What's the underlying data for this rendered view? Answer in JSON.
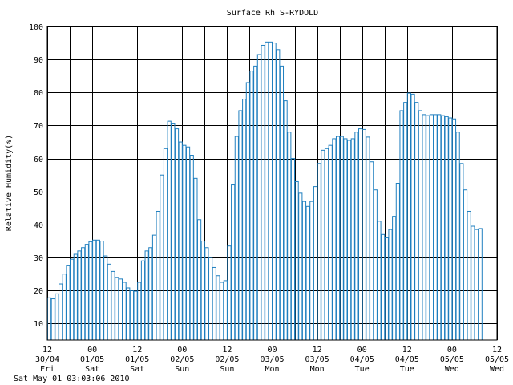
{
  "chart_data": {
    "type": "bar",
    "title": "Surface Rh S-RYDOLD",
    "ylabel": "Relative Humidity(%)",
    "xlabel": "",
    "ylim": [
      5,
      100
    ],
    "yticks": [
      10,
      20,
      30,
      40,
      50,
      60,
      70,
      80,
      90,
      100
    ],
    "grid": true,
    "series_color": "#1f7fbf",
    "timestamp": "Sat May 01 03:03:06 2010",
    "x_ticks": [
      {
        "hour": "12",
        "date": "30/04",
        "day": "Fri"
      },
      {
        "hour": "00",
        "date": "01/05",
        "day": "Sat"
      },
      {
        "hour": "12",
        "date": "01/05",
        "day": "Sat"
      },
      {
        "hour": "00",
        "date": "02/05",
        "day": "Sun"
      },
      {
        "hour": "12",
        "date": "02/05",
        "day": "Sun"
      },
      {
        "hour": "00",
        "date": "03/05",
        "day": "Mon"
      },
      {
        "hour": "12",
        "date": "03/05",
        "day": "Mon"
      },
      {
        "hour": "00",
        "date": "04/05",
        "day": "Tue"
      },
      {
        "hour": "12",
        "date": "04/05",
        "day": "Tue"
      },
      {
        "hour": "00",
        "date": "05/05",
        "day": "Wed"
      },
      {
        "hour": "12",
        "date": "05/05",
        "day": "Wed"
      }
    ],
    "bar_hours": 1,
    "values": [
      17.8,
      17.5,
      19.0,
      22.0,
      25.0,
      27.5,
      29.5,
      31.0,
      32.0,
      33.0,
      34.0,
      34.8,
      35.3,
      35.3,
      35.0,
      30.5,
      28.0,
      25.8,
      24.0,
      23.5,
      22.5,
      20.8,
      20.0,
      19.8,
      22.5,
      29.0,
      32.0,
      33.0,
      36.8,
      44.0,
      55.0,
      63.0,
      71.3,
      70.7,
      69.0,
      65.0,
      64.0,
      63.5,
      61.0,
      54.0,
      41.5,
      35.0,
      33.0,
      30.0,
      27.0,
      24.5,
      22.5,
      23.0,
      33.5,
      52.0,
      66.7,
      74.5,
      78.0,
      83.0,
      86.5,
      88.0,
      91.5,
      94.3,
      95.3,
      95.3,
      95.0,
      93.0,
      88.0,
      77.5,
      68.0,
      60.0,
      53.0,
      49.5,
      47.0,
      45.5,
      47.0,
      51.5,
      58.5,
      62.5,
      63.0,
      64.0,
      66.0,
      66.7,
      66.7,
      66.0,
      65.5,
      66.0,
      68.0,
      69.0,
      68.8,
      66.5,
      59.0,
      50.5,
      41.0,
      37.0,
      36.0,
      38.5,
      42.5,
      52.5,
      74.5,
      77.0,
      79.8,
      79.5,
      77.0,
      74.5,
      73.3,
      73.0,
      73.3,
      73.3,
      73.3,
      73.0,
      72.7,
      72.3,
      72.0,
      68.0,
      58.5,
      50.5,
      44.0,
      39.5,
      38.5,
      38.8
    ]
  }
}
